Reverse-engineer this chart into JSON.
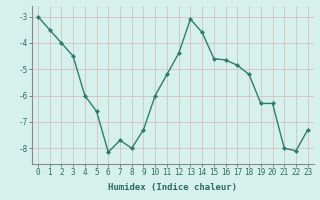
{
  "x": [
    0,
    1,
    2,
    3,
    4,
    5,
    6,
    7,
    8,
    9,
    10,
    11,
    12,
    13,
    14,
    15,
    16,
    17,
    18,
    19,
    20,
    21,
    22,
    23
  ],
  "y": [
    -3.0,
    -3.5,
    -4.0,
    -4.5,
    -6.0,
    -6.6,
    -8.15,
    -7.7,
    -8.0,
    -7.3,
    -6.0,
    -5.2,
    -4.4,
    -3.1,
    -3.6,
    -4.6,
    -4.65,
    -4.85,
    -5.2,
    -6.3,
    -6.3,
    -8.0,
    -8.1,
    -7.3
  ],
  "line_color": "#2d7d6e",
  "marker": "D",
  "marker_size": 2.0,
  "bg_color": "#d6f0ec",
  "grid_color_major": "#c8e6e0",
  "grid_color_minor": "#ddf4f0",
  "xlabel": "Humidex (Indice chaleur)",
  "ylim": [
    -8.6,
    -2.6
  ],
  "xlim": [
    -0.5,
    23.5
  ],
  "yticks": [
    -8,
    -7,
    -6,
    -5,
    -4,
    -3
  ],
  "xticks": [
    0,
    1,
    2,
    3,
    4,
    5,
    6,
    7,
    8,
    9,
    10,
    11,
    12,
    13,
    14,
    15,
    16,
    17,
    18,
    19,
    20,
    21,
    22,
    23
  ],
  "xtick_labels": [
    "0",
    "1",
    "2",
    "3",
    "4",
    "5",
    "6",
    "7",
    "8",
    "9",
    "10",
    "11",
    "12",
    "13",
    "14",
    "15",
    "16",
    "17",
    "18",
    "19",
    "20",
    "21",
    "22",
    "23"
  ],
  "xlabel_fontsize": 6.5,
  "tick_fontsize": 5.5,
  "linewidth": 1.0
}
